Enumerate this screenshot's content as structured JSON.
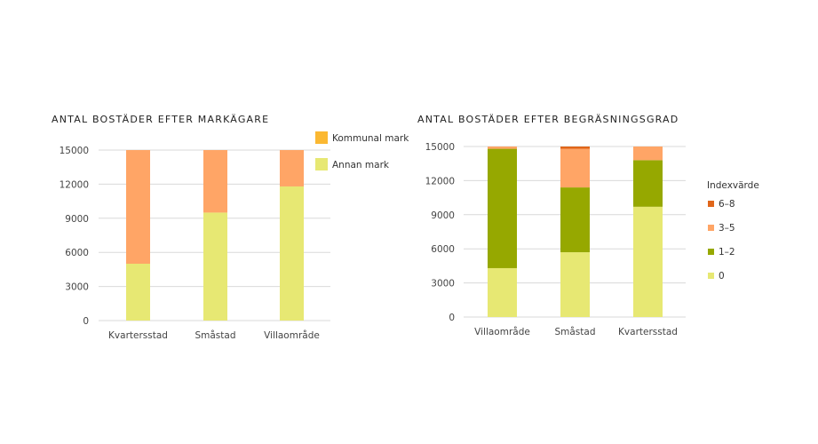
{
  "chart_data": [
    {
      "type": "bar",
      "stacked": true,
      "title": "ANTAL BOSTÄDER EFTER MARKÄGARE",
      "categories": [
        "Kvartersstad",
        "Småstad",
        "Villaområde"
      ],
      "ylim": [
        0,
        15000
      ],
      "yticks": [
        0,
        3000,
        6000,
        9000,
        12000,
        15000
      ],
      "grid": true,
      "legend_position": "top-right",
      "series": [
        {
          "name": "Annan mark",
          "color": "#e7e873",
          "values": [
            5000,
            9500,
            11800
          ]
        },
        {
          "name": "Kommunal mark",
          "color": "#ffa566",
          "values": [
            10000,
            5500,
            3200
          ]
        }
      ],
      "legend": [
        {
          "name": "Kommunal mark",
          "color": "#fbb832"
        },
        {
          "name": "Annan mark",
          "color": "#e7e873"
        }
      ]
    },
    {
      "type": "bar",
      "stacked": true,
      "title": "ANTAL BOSTÄDER EFTER BEGRÄSNINGSGRAD",
      "categories": [
        "Villaområde",
        "Småstad",
        "Kvartersstad"
      ],
      "ylim": [
        0,
        15000
      ],
      "yticks": [
        0,
        3000,
        6000,
        9000,
        12000,
        15000
      ],
      "grid": true,
      "legend_title": "Indexvärde",
      "legend_position": "right",
      "series": [
        {
          "name": "0",
          "color": "#e7e873",
          "values": [
            4300,
            5700,
            9700
          ]
        },
        {
          "name": "1–2",
          "color": "#96a800",
          "values": [
            10500,
            5700,
            4100
          ]
        },
        {
          "name": "3–5",
          "color": "#ffa566",
          "values": [
            200,
            3400,
            1200
          ]
        },
        {
          "name": "6–8",
          "color": "#e0661a",
          "values": [
            0,
            200,
            0
          ]
        }
      ],
      "legend": [
        {
          "name": "6–8",
          "color": "#e0661a"
        },
        {
          "name": "3–5",
          "color": "#ffa566"
        },
        {
          "name": "1–2",
          "color": "#96a800"
        },
        {
          "name": "0",
          "color": "#e7e873"
        }
      ]
    }
  ]
}
